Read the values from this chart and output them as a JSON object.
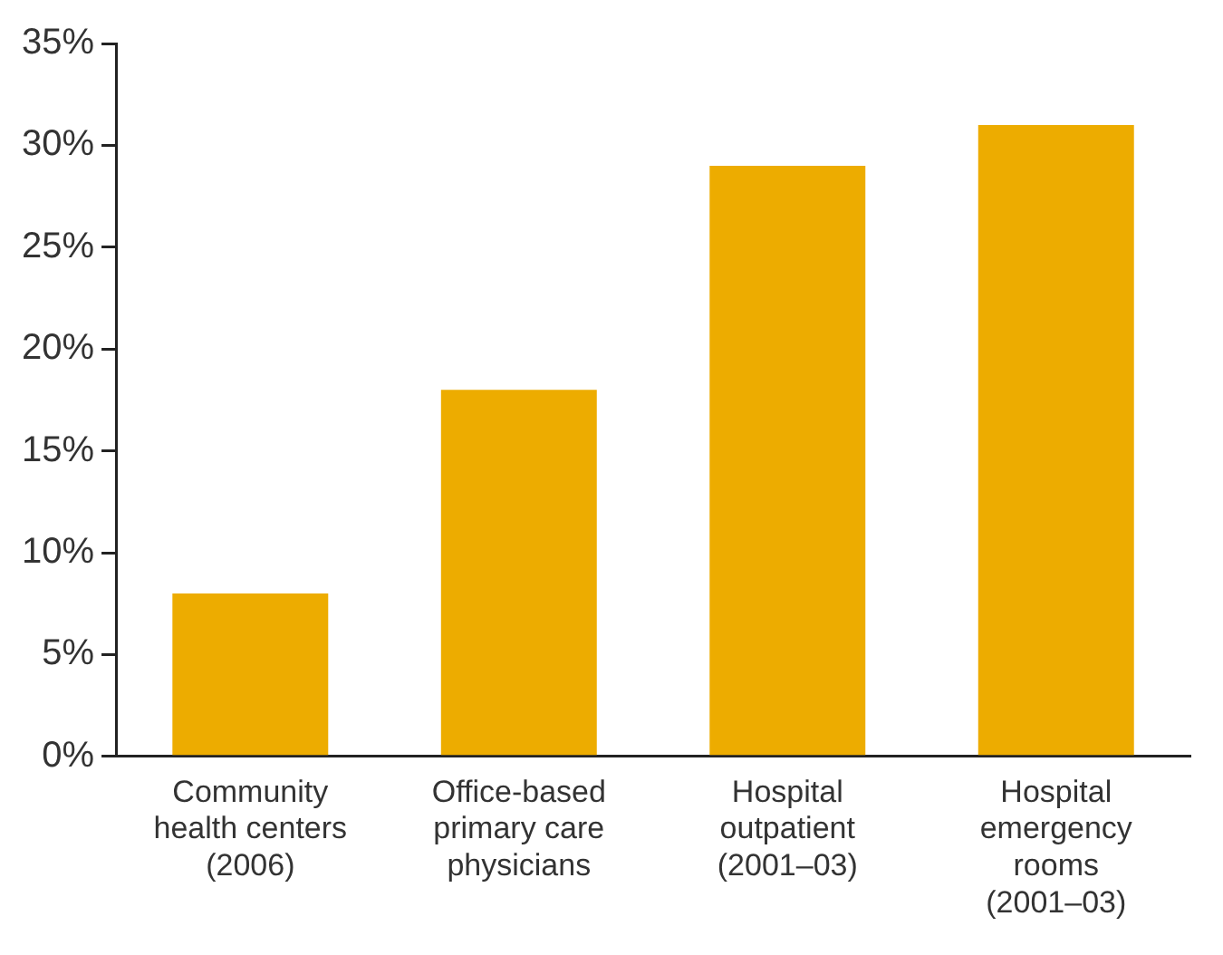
{
  "chart_data": {
    "type": "bar",
    "categories": [
      "Community health centers (2006)",
      "Office-based primary care physicians",
      "Hospital outpatient (2001–03)",
      "Hospital emergency rooms (2001–03)"
    ],
    "values": [
      8,
      18,
      29,
      31
    ],
    "color": "#edac00",
    "ylim": [
      0,
      35
    ],
    "yticks": [
      {
        "value": 0,
        "label": "0%"
      },
      {
        "value": 5,
        "label": "5%"
      },
      {
        "value": 10,
        "label": "10%"
      },
      {
        "value": 15,
        "label": "15%"
      },
      {
        "value": 20,
        "label": "20%"
      },
      {
        "value": 25,
        "label": "25%"
      },
      {
        "value": 30,
        "label": "30%"
      },
      {
        "value": 35,
        "label": "35%"
      }
    ],
    "grid": false,
    "legend": false
  }
}
